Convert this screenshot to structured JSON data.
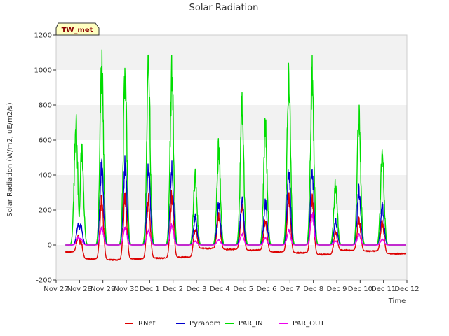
{
  "chart_data": {
    "type": "line",
    "title": "Solar Radiation",
    "xlabel": "Time",
    "ylabel": "Solar Radiation (W/m2, uE/m2/s)",
    "badge": "TW_met",
    "ylim": [
      -200,
      1200
    ],
    "yticks": [
      -200,
      0,
      200,
      400,
      600,
      800,
      1000,
      1200
    ],
    "xlim": [
      0,
      15
    ],
    "xtick_labels": [
      "Nov 27",
      "Nov 28",
      "Nov 29",
      "Nov 30",
      "Dec 1",
      "Dec 2",
      "Dec 3",
      "Dec 4",
      "Dec 5",
      "Dec 6",
      "Dec 7",
      "Dec 8",
      "Dec 9",
      "Dec 10",
      "Dec 11",
      "Dec 12"
    ],
    "grid": "horizontal bands",
    "legend_position": "bottom",
    "series": [
      {
        "name": "RNet",
        "color": "#dd0000",
        "night": [
          -40,
          -80,
          -85,
          -80,
          -75,
          -70,
          -20,
          -25,
          -30,
          -40,
          -45,
          -55,
          -30,
          -35,
          -50
        ],
        "peaks": [
          [
            0.95,
            60
          ],
          [
            1.05,
            40
          ],
          [
            1.95,
            310
          ],
          [
            2.95,
            330
          ],
          [
            3.95,
            310
          ],
          [
            4.95,
            330
          ],
          [
            5.95,
            120
          ],
          [
            6.95,
            190
          ],
          [
            7.95,
            240
          ],
          [
            8.95,
            160
          ],
          [
            9.95,
            310
          ],
          [
            10.95,
            300
          ],
          [
            11.95,
            90
          ],
          [
            12.95,
            170
          ],
          [
            13.95,
            150
          ]
        ]
      },
      {
        "name": "Pyranom",
        "color": "#0000cc",
        "night": [
          0,
          0,
          0,
          0,
          0,
          0,
          0,
          0,
          0,
          0,
          0,
          0,
          0,
          0,
          0
        ],
        "peaks": [
          [
            0.95,
            130
          ],
          [
            1.05,
            130
          ],
          [
            1.95,
            525
          ],
          [
            2.95,
            520
          ],
          [
            3.95,
            510
          ],
          [
            4.95,
            500
          ],
          [
            5.95,
            180
          ],
          [
            6.95,
            260
          ],
          [
            7.95,
            300
          ],
          [
            8.95,
            270
          ],
          [
            9.95,
            475
          ],
          [
            10.95,
            485
          ],
          [
            11.95,
            155
          ],
          [
            12.95,
            360
          ],
          [
            13.95,
            245
          ]
        ]
      },
      {
        "name": "PAR_IN",
        "color": "#00dd00",
        "night": [
          0,
          0,
          0,
          0,
          0,
          0,
          0,
          0,
          0,
          0,
          0,
          0,
          0,
          0,
          0
        ],
        "peaks": [
          [
            0.85,
            800
          ],
          [
            1.1,
            610
          ],
          [
            1.95,
            1150
          ],
          [
            2.95,
            1140
          ],
          [
            3.95,
            1135
          ],
          [
            4.95,
            1115
          ],
          [
            5.95,
            445
          ],
          [
            6.95,
            615
          ],
          [
            7.95,
            905
          ],
          [
            8.95,
            760
          ],
          [
            9.95,
            1075
          ],
          [
            10.95,
            1090
          ],
          [
            11.95,
            390
          ],
          [
            12.95,
            835
          ],
          [
            13.95,
            600
          ]
        ]
      },
      {
        "name": "PAR_OUT",
        "color": "#ee00ee",
        "night": [
          0,
          0,
          0,
          0,
          0,
          0,
          0,
          0,
          0,
          0,
          0,
          0,
          0,
          0,
          0
        ],
        "peaks": [
          [
            0.95,
            50
          ],
          [
            1.05,
            40
          ],
          [
            1.95,
            115
          ],
          [
            2.95,
            115
          ],
          [
            3.95,
            100
          ],
          [
            4.95,
            130
          ],
          [
            5.95,
            25
          ],
          [
            6.95,
            35
          ],
          [
            7.95,
            70
          ],
          [
            8.95,
            45
          ],
          [
            9.95,
            95
          ],
          [
            10.95,
            200
          ],
          [
            11.95,
            25
          ],
          [
            12.95,
            70
          ],
          [
            13.95,
            35
          ]
        ]
      }
    ]
  }
}
